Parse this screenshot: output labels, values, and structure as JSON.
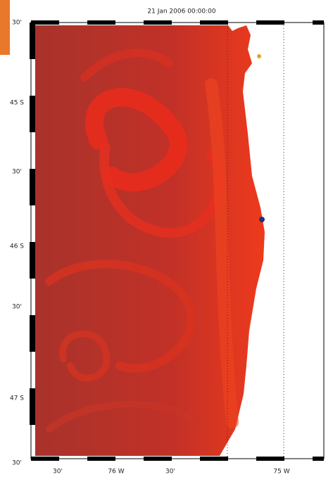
{
  "map": {
    "title": "21 Jan 2006 00:00:00",
    "y_labels": [
      "30'",
      "45 S",
      "30'",
      "46 S",
      "30'",
      "47 S",
      "30'"
    ],
    "x_labels": [
      "30'",
      "76 W",
      "30'",
      "75 W"
    ]
  }
}
